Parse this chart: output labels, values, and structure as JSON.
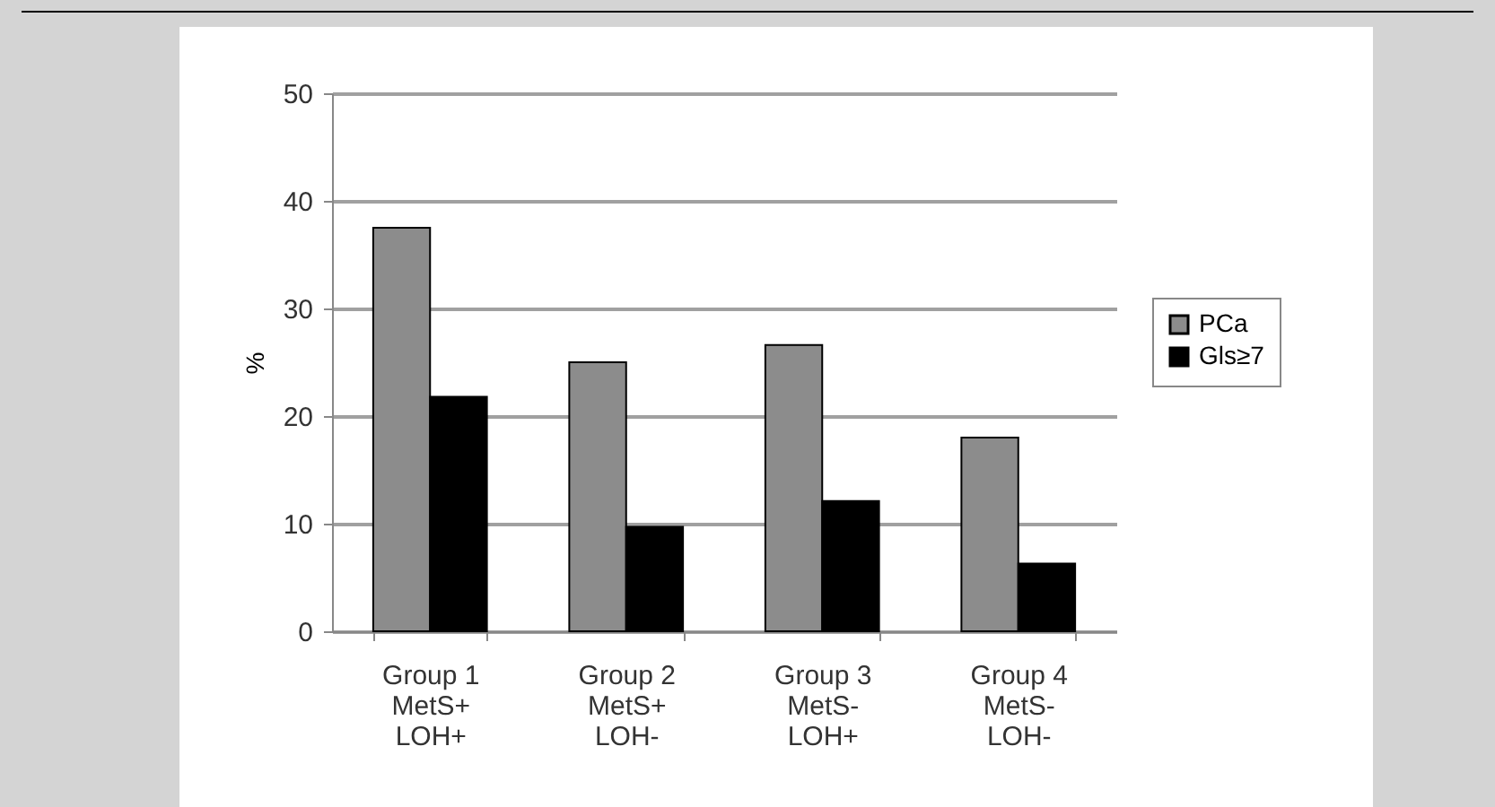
{
  "chart_data": {
    "type": "bar",
    "ylabel": "%",
    "categories": [
      "Group 1\nMetS+\nLOH+",
      "Group 2\nMetS+\nLOH-",
      "Group 3\nMetS-\nLOH+",
      "Group 4\nMetS-\nLOH-"
    ],
    "series": [
      {
        "name": "PCa",
        "color": "#8c8c8c",
        "values": [
          37.5,
          25,
          26.6,
          18
        ]
      },
      {
        "name": "Gls≥7",
        "color": "#000000",
        "values": [
          21.8,
          9.7,
          12.1,
          6.3
        ]
      }
    ],
    "ylim": [
      0,
      50
    ],
    "yticks": [
      0,
      10,
      20,
      30,
      40,
      50
    ],
    "grid": "y",
    "legend": "right"
  }
}
